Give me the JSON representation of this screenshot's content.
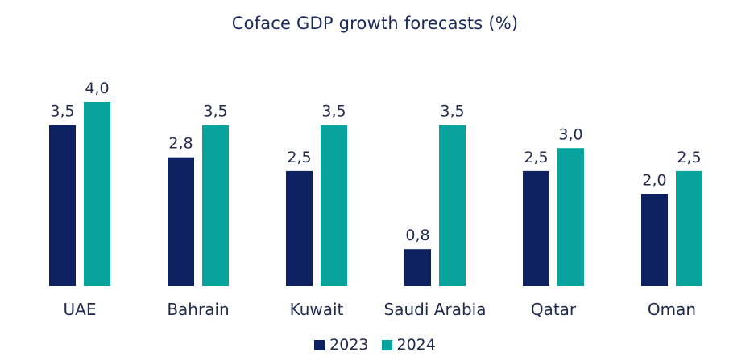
{
  "chart_data": {
    "type": "bar",
    "title": "Coface GDP growth forecasts (%)",
    "categories": [
      "UAE",
      "Bahrain",
      "Kuwait",
      "Saudi Arabia",
      "Qatar",
      "Oman"
    ],
    "series": [
      {
        "name": "2023",
        "color": "#0e2160",
        "values": [
          3.5,
          2.8,
          2.5,
          0.8,
          2.5,
          2.0
        ],
        "labels": [
          "3,5",
          "2,8",
          "2,5",
          "0,8",
          "2,5",
          "2,0"
        ]
      },
      {
        "name": "2024",
        "color": "#08a39c",
        "values": [
          4.0,
          3.5,
          3.5,
          3.5,
          3.0,
          2.5
        ],
        "labels": [
          "4,0",
          "3,5",
          "3,5",
          "3,5",
          "3,0",
          "2,5"
        ]
      }
    ],
    "ylim": [
      0,
      4.0
    ],
    "grid": false,
    "legend_position": "bottom"
  }
}
